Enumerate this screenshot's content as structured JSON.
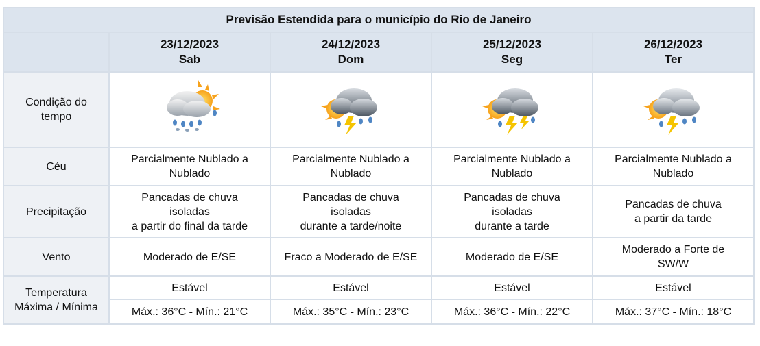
{
  "title": "Previsão Estendida para o município do Rio de Janeiro",
  "labels": {
    "condicao": "Condição do tempo",
    "ceu": "Céu",
    "precipitacao": "Precipitação",
    "vento": "Vento",
    "temperatura": "Temperatura Máxima / Mínima"
  },
  "temp_labels": {
    "max": "Máx.:",
    "min": "Mín.:",
    "sep": " - "
  },
  "days": [
    {
      "date": "23/12/2023",
      "weekday": "Sab",
      "icon": "partly-cloudy-rain-icon",
      "ceu": [
        "Parcialmente Nublado a",
        "Nublado"
      ],
      "precipitacao": [
        "Pancadas de chuva",
        "isoladas",
        "a partir do final da tarde"
      ],
      "vento": [
        "Moderado de E/SE"
      ],
      "tendencia": "Estável",
      "max": "36°C",
      "min": "21°C"
    },
    {
      "date": "24/12/2023",
      "weekday": "Dom",
      "icon": "thunderstorm-icon",
      "ceu": [
        "Parcialmente Nublado a",
        "Nublado"
      ],
      "precipitacao": [
        "Pancadas de chuva",
        "isoladas",
        "durante a tarde/noite"
      ],
      "vento": [
        "Fraco a Moderado de E/SE"
      ],
      "tendencia": "Estável",
      "max": "35°C",
      "min": "23°C"
    },
    {
      "date": "25/12/2023",
      "weekday": "Seg",
      "icon": "thunderstorm-icon",
      "ceu": [
        "Parcialmente Nublado a",
        "Nublado"
      ],
      "precipitacao": [
        "Pancadas de chuva",
        "isoladas",
        "durante a tarde"
      ],
      "vento": [
        "Moderado de E/SE"
      ],
      "tendencia": "Estável",
      "max": "36°C",
      "min": "22°C"
    },
    {
      "date": "26/12/2023",
      "weekday": "Ter",
      "icon": "thunderstorm-icon",
      "ceu": [
        "Parcialmente Nublado a",
        "Nublado"
      ],
      "precipitacao": [
        "Pancadas de chuva",
        "a partir da tarde"
      ],
      "vento": [
        "Moderado a Forte de",
        "SW/W"
      ],
      "tendencia": "Estável",
      "max": "37°C",
      "min": "18°C"
    }
  ]
}
